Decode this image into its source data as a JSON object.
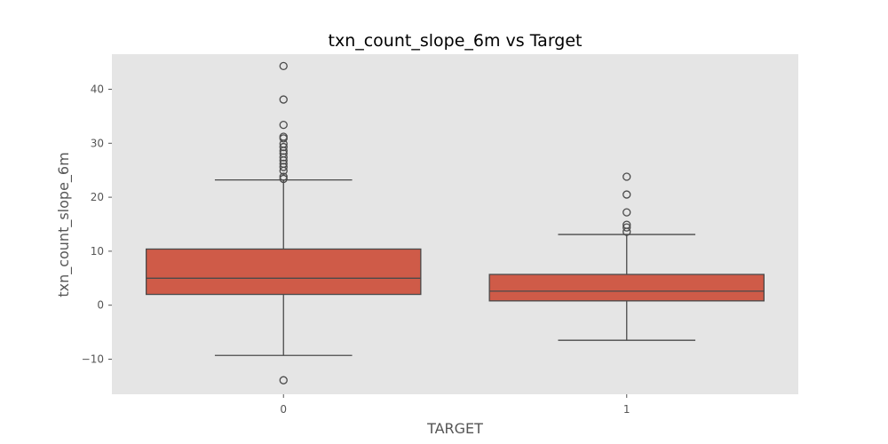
{
  "chart_data": {
    "type": "box",
    "title": "txn_count_slope_6m vs Target",
    "xlabel": "TARGET",
    "ylabel": "txn_count_slope_6m",
    "ylim": [
      -16.5,
      46.5
    ],
    "yticks": [
      -10,
      0,
      10,
      20,
      30,
      40
    ],
    "ytick_labels": [
      "−10",
      "0",
      "10",
      "20",
      "30",
      "40"
    ],
    "grid": false,
    "colors": {
      "plot_background": "#e5e5e5",
      "box_fill": "#cf5b48",
      "line": "#4a4a4a"
    },
    "categories": [
      "0",
      "1"
    ],
    "boxes": [
      {
        "category": "0",
        "whisker_low": -9.3,
        "q1": 2.0,
        "median": 5.0,
        "q3": 10.4,
        "whisker_high": 23.2,
        "outliers": [
          44.3,
          38.1,
          33.4,
          31.2,
          30.9,
          29.9,
          29.3,
          28.6,
          28.1,
          27.4,
          26.8,
          26.2,
          25.6,
          24.9,
          23.8,
          23.4,
          -13.9
        ]
      },
      {
        "category": "1",
        "whisker_low": -6.5,
        "q1": 0.8,
        "median": 2.6,
        "q3": 5.7,
        "whisker_high": 13.1,
        "outliers": [
          23.8,
          20.5,
          17.2,
          14.9,
          14.4,
          13.6
        ]
      }
    ]
  }
}
